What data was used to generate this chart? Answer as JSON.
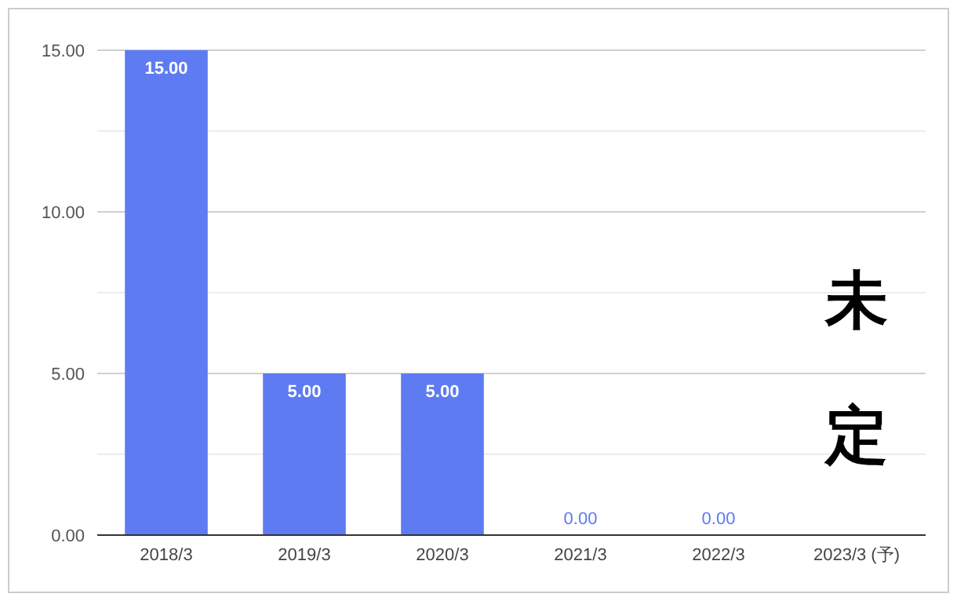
{
  "chart_data": {
    "type": "bar",
    "categories": [
      "2018/3",
      "2019/3",
      "2020/3",
      "2021/3",
      "2022/3",
      "2023/3 (予)"
    ],
    "values": [
      15,
      5,
      5,
      0,
      0,
      null
    ],
    "value_labels": [
      "15.00",
      "5.00",
      "5.00",
      "0.00",
      "0.00",
      null
    ],
    "color": "#5e7bf2",
    "ylim": [
      0,
      15
    ],
    "yticks": [
      {
        "value": 0,
        "label": "0.00"
      },
      {
        "value": 2.5,
        "label": null
      },
      {
        "value": 5,
        "label": "5.00"
      },
      {
        "value": 7.5,
        "label": null
      },
      {
        "value": 10,
        "label": "10.00"
      },
      {
        "value": 12.5,
        "label": null
      },
      {
        "value": 15,
        "label": "15.00"
      }
    ],
    "grid": "y",
    "annotations": [
      "未定"
    ]
  }
}
